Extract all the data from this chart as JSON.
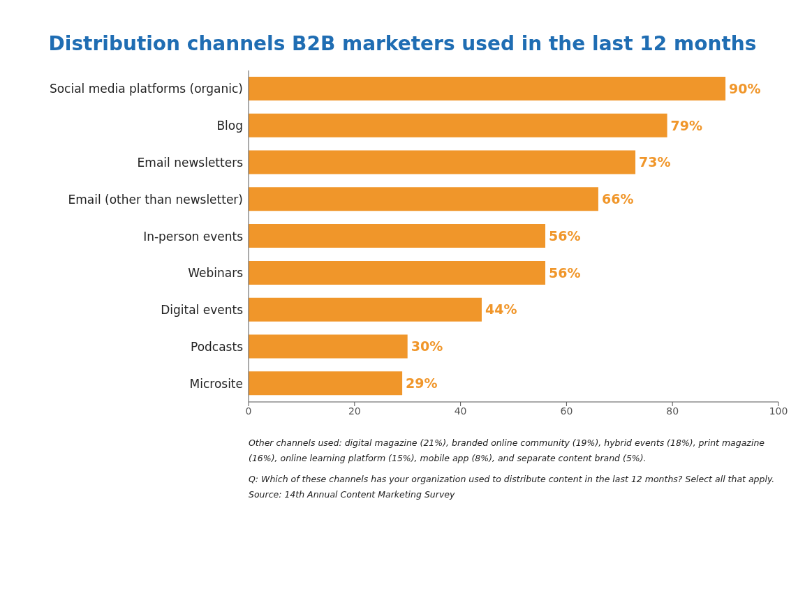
{
  "chart_data": {
    "type": "bar",
    "orientation": "horizontal",
    "title": "Distribution channels B2B marketers used in the last 12 months",
    "categories": [
      "Social media platforms (organic)",
      "Blog",
      "Email newsletters",
      "Email (other than newsletter)",
      "In-person events",
      "Webinars",
      "Digital events",
      "Podcasts",
      "Microsite"
    ],
    "values": [
      90,
      79,
      73,
      66,
      56,
      56,
      44,
      30,
      29
    ],
    "value_labels": [
      "90%",
      "79%",
      "73%",
      "66%",
      "56%",
      "56%",
      "44%",
      "30%",
      "29%"
    ],
    "color": "#f0962a",
    "xlim": [
      0,
      100
    ],
    "xticks": [
      0,
      20,
      40,
      60,
      80,
      100
    ],
    "grid": false,
    "annotations": [
      "Other channels used: digital magazine (21%), branded online community (19%), hybrid events (18%), print magazine (16%), online learning platform (15%), mobile app (8%), and separate content brand (5%).",
      "Q: Which of these channels has your organization used to distribute content in the last 12 months? Select all that apply.",
      "Source: 14th Annual Content Marketing Survey"
    ]
  }
}
